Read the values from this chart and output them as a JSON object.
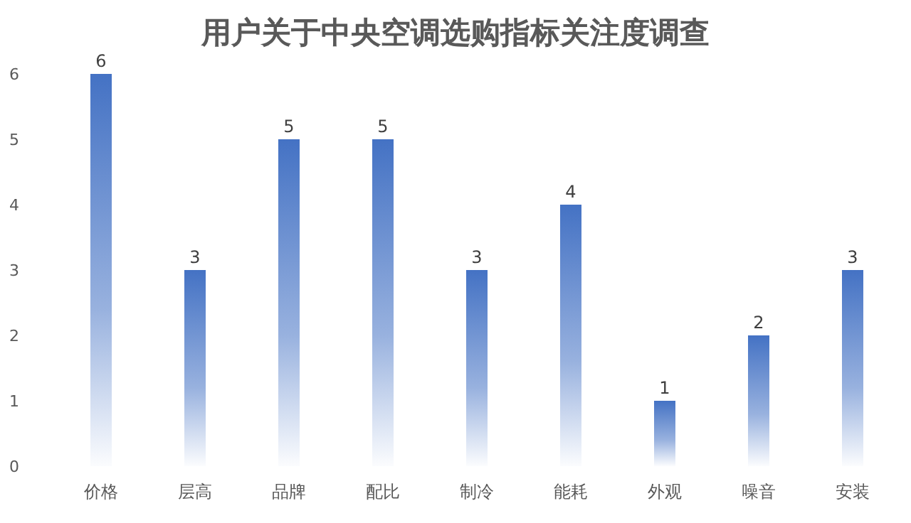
{
  "chart_data": {
    "type": "bar",
    "title": "用户关于中央空调选购指标关注度调查",
    "categories": [
      "价格",
      "层高",
      "品牌",
      "配比",
      "制冷",
      "能耗",
      "外观",
      "噪音",
      "安装"
    ],
    "values": [
      6,
      3,
      5,
      5,
      3,
      4,
      1,
      2,
      3
    ],
    "color": "#4472c4",
    "ylim": [
      0,
      6
    ],
    "yticks": [
      0,
      1,
      2,
      3,
      4,
      5,
      6
    ],
    "grid": false,
    "data_labels": true
  }
}
